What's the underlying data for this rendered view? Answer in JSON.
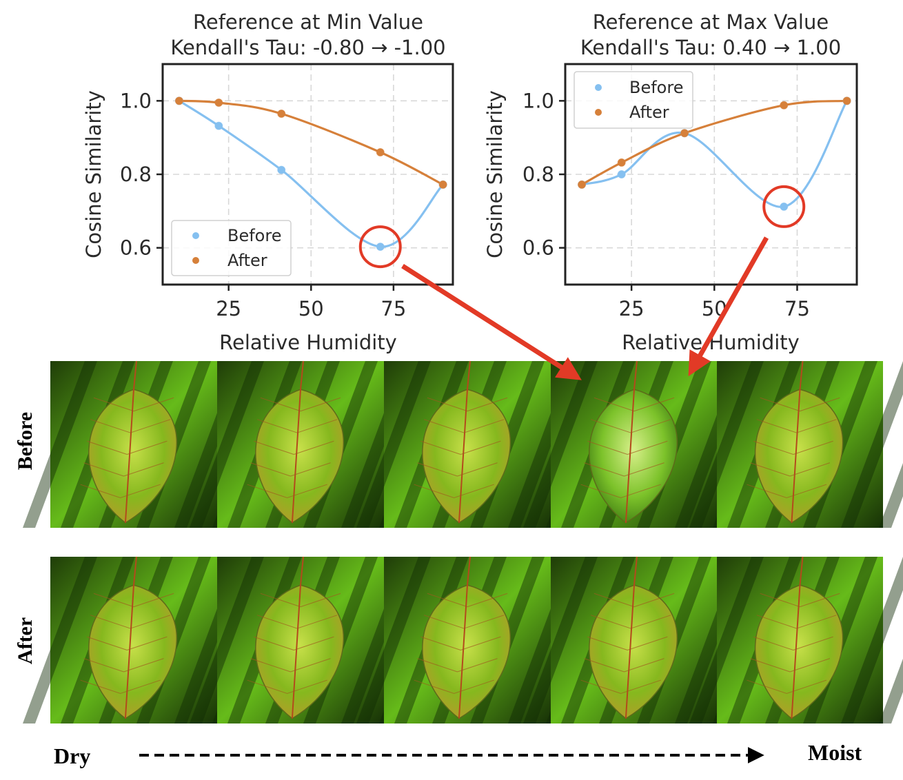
{
  "chart_data": [
    {
      "type": "line",
      "title": "Reference at Min Value",
      "subtitle": "Kendall's Tau: -0.80 → -1.00",
      "xlabel": "Relative Humidity",
      "ylabel": "Cosine Similarity",
      "xlim": [
        5,
        93
      ],
      "ylim": [
        0.5,
        1.1
      ],
      "xticks": [
        25,
        50,
        75
      ],
      "yticks": [
        0.6,
        0.8,
        1.0
      ],
      "xtick_labels": [
        "25",
        "50",
        "75"
      ],
      "ytick_labels": [
        "0.6",
        "0.8",
        "1.0"
      ],
      "grid": true,
      "legend_position": "lower-left",
      "highlight_point": {
        "x": 71,
        "y": 0.603
      },
      "series": [
        {
          "name": "Before",
          "color": "#85c0f0",
          "x": [
            10,
            22,
            41,
            71,
            90
          ],
          "y": [
            1.0,
            0.932,
            0.812,
            0.603,
            0.772
          ]
        },
        {
          "name": "After",
          "color": "#d6803a",
          "x": [
            10,
            22,
            41,
            71,
            90
          ],
          "y": [
            1.0,
            0.995,
            0.965,
            0.86,
            0.772
          ]
        }
      ]
    },
    {
      "type": "line",
      "title": "Reference at Max Value",
      "subtitle": "Kendall's Tau: 0.40 → 1.00",
      "xlabel": "Relative Humidity",
      "ylabel": "Cosine Similarity",
      "xlim": [
        5,
        93
      ],
      "ylim": [
        0.5,
        1.1
      ],
      "xticks": [
        25,
        50,
        75
      ],
      "yticks": [
        0.6,
        0.8,
        1.0
      ],
      "xtick_labels": [
        "25",
        "50",
        "75"
      ],
      "ytick_labels": [
        "0.6",
        "0.8",
        "1.0"
      ],
      "grid": true,
      "legend_position": "upper-left",
      "highlight_point": {
        "x": 71,
        "y": 0.712
      },
      "series": [
        {
          "name": "Before",
          "color": "#85c0f0",
          "x": [
            10,
            22,
            41,
            71,
            90
          ],
          "y": [
            0.772,
            0.8,
            0.912,
            0.712,
            1.0
          ]
        },
        {
          "name": "After",
          "color": "#d6803a",
          "x": [
            10,
            22,
            41,
            71,
            90
          ],
          "y": [
            0.772,
            0.832,
            0.912,
            0.988,
            1.0
          ]
        }
      ]
    }
  ],
  "image_grid": {
    "rows": [
      {
        "label": "Before",
        "count": 5
      },
      {
        "label": "After",
        "count": 5
      }
    ]
  },
  "axis_bottom": {
    "left_label": "Dry",
    "right_label": "Moist"
  },
  "colors": {
    "before": "#85c0f0",
    "after": "#d6803a",
    "highlight": "#e23a26",
    "arrow": "#e23a26",
    "text": "#2b2b2b"
  }
}
